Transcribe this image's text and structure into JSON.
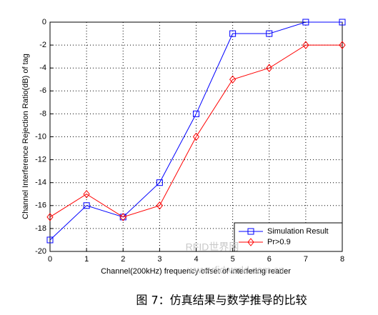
{
  "chart_data": {
    "type": "line",
    "xlabel": "Channel(200kHz) frequency offset of interfering reader",
    "ylabel": "Channel Interference Rejection Ratio(dB) of tag",
    "x": [
      0,
      1,
      2,
      3,
      4,
      5,
      6,
      7,
      8
    ],
    "series": [
      {
        "name": "Simulation Result",
        "color": "#0000ff",
        "marker": "square",
        "values": [
          -19,
          -16,
          -17,
          -14,
          -8,
          -1,
          -1,
          0,
          0
        ]
      },
      {
        "name": "Pr>0.9",
        "color": "#ff0000",
        "marker": "diamond",
        "values": [
          -17,
          -15,
          -17,
          -16,
          -10,
          -5,
          -4,
          -2,
          -2
        ]
      }
    ],
    "xlim": [
      0,
      8
    ],
    "xticks": [
      0,
      1,
      2,
      3,
      4,
      5,
      6,
      7,
      8
    ],
    "ylim": [
      -20,
      0
    ],
    "yticks": [
      0,
      -2,
      -4,
      -6,
      -8,
      -10,
      -12,
      -14,
      -16,
      -18,
      -20
    ],
    "grid": true,
    "legend": "lower right"
  },
  "watermarks": [
    "RFID世界网",
    "www.rfidworld.com.cn"
  ],
  "caption": "图 7：仿真结果与数学推导的比较"
}
